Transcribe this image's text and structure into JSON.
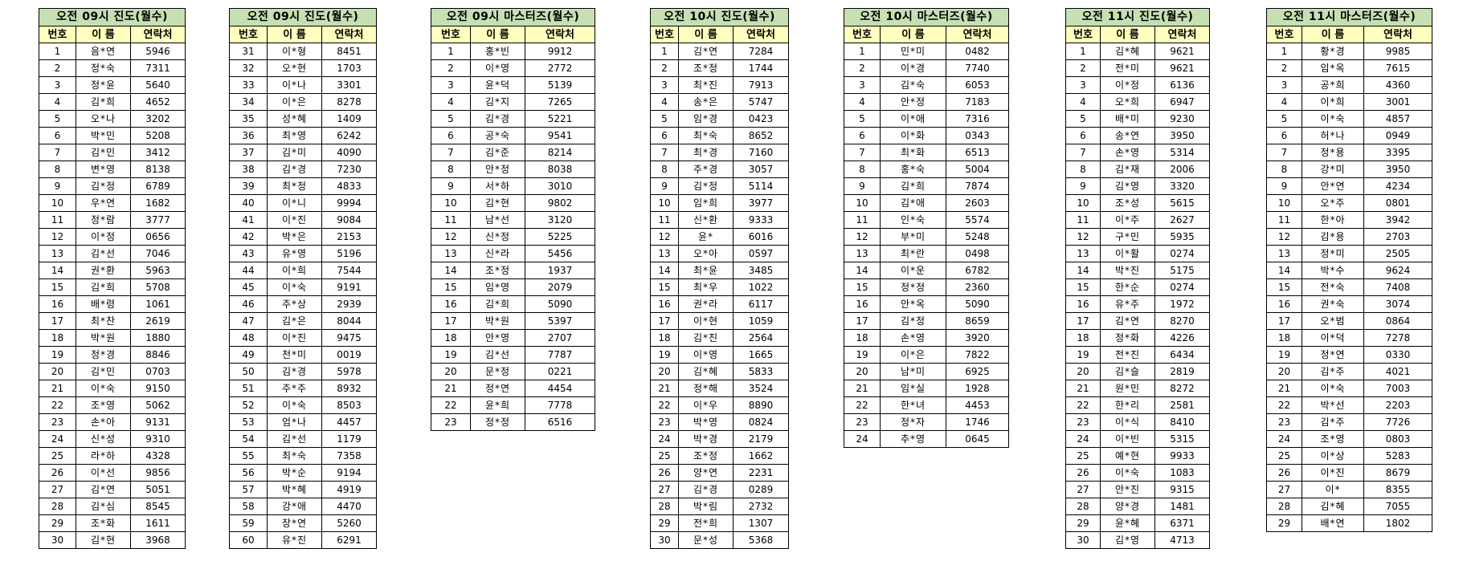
{
  "colors": {
    "title_bg": "#c6e0b4",
    "header_bg": "#ffffc0",
    "border": "#000000"
  },
  "column_headers": [
    "번호",
    "이 름",
    "연락처"
  ],
  "tables": [
    {
      "title": "오전 09시 진도(월수)",
      "rows": [
        [
          "1",
          "음*연",
          "5946"
        ],
        [
          "2",
          "정*숙",
          "7311"
        ],
        [
          "3",
          "정*윤",
          "5640"
        ],
        [
          "4",
          "김*희",
          "4652"
        ],
        [
          "5",
          "오*나",
          "3202"
        ],
        [
          "6",
          "박*민",
          "5208"
        ],
        [
          "7",
          "김*민",
          "3412"
        ],
        [
          "8",
          "변*영",
          "8138"
        ],
        [
          "9",
          "김*정",
          "6789"
        ],
        [
          "10",
          "우*연",
          "1682"
        ],
        [
          "11",
          "정*람",
          "3777"
        ],
        [
          "12",
          "이*정",
          "0656"
        ],
        [
          "13",
          "김*선",
          "7046"
        ],
        [
          "14",
          "권*환",
          "5963"
        ],
        [
          "15",
          "김*희",
          "5708"
        ],
        [
          "16",
          "배*령",
          "1061"
        ],
        [
          "17",
          "최*찬",
          "2619"
        ],
        [
          "18",
          "박*원",
          "1880"
        ],
        [
          "19",
          "정*경",
          "8846"
        ],
        [
          "20",
          "김*민",
          "0703"
        ],
        [
          "21",
          "이*숙",
          "9150"
        ],
        [
          "22",
          "조*영",
          "5062"
        ],
        [
          "23",
          "손*아",
          "9131"
        ],
        [
          "24",
          "신*성",
          "9310"
        ],
        [
          "25",
          "라*하",
          "4328"
        ],
        [
          "26",
          "이*선",
          "9856"
        ],
        [
          "27",
          "김*연",
          "5051"
        ],
        [
          "28",
          "김*심",
          "8545"
        ],
        [
          "29",
          "조*화",
          "1611"
        ],
        [
          "30",
          "김*현",
          "3968"
        ]
      ]
    },
    {
      "title": "오전 09시 진도(월수)",
      "rows": [
        [
          "31",
          "이*형",
          "8451"
        ],
        [
          "32",
          "오*현",
          "1703"
        ],
        [
          "33",
          "이*나",
          "3301"
        ],
        [
          "34",
          "이*은",
          "8278"
        ],
        [
          "35",
          "성*혜",
          "1409"
        ],
        [
          "36",
          "최*영",
          "6242"
        ],
        [
          "37",
          "김*미",
          "4090"
        ],
        [
          "38",
          "김*경",
          "7230"
        ],
        [
          "39",
          "최*정",
          "4833"
        ],
        [
          "40",
          "이*니",
          "9994"
        ],
        [
          "41",
          "이*진",
          "9084"
        ],
        [
          "42",
          "박*은",
          "2153"
        ],
        [
          "43",
          "유*영",
          "5196"
        ],
        [
          "44",
          "이*희",
          "7544"
        ],
        [
          "45",
          "이*숙",
          "9191"
        ],
        [
          "46",
          "주*상",
          "2939"
        ],
        [
          "47",
          "김*은",
          "8044"
        ],
        [
          "48",
          "이*진",
          "9475"
        ],
        [
          "49",
          "천*미",
          "0019"
        ],
        [
          "50",
          "김*경",
          "5978"
        ],
        [
          "51",
          "주*주",
          "8932"
        ],
        [
          "52",
          "이*숙",
          "8503"
        ],
        [
          "53",
          "엄*나",
          "4457"
        ],
        [
          "54",
          "김*선",
          "1179"
        ],
        [
          "55",
          "최*숙",
          "7358"
        ],
        [
          "56",
          "박*순",
          "9194"
        ],
        [
          "57",
          "박*혜",
          "4919"
        ],
        [
          "58",
          "강*애",
          "4470"
        ],
        [
          "59",
          "장*연",
          "5260"
        ],
        [
          "60",
          "유*진",
          "6291"
        ]
      ]
    },
    {
      "title": "오전 09시 마스터즈(월수)",
      "rows": [
        [
          "1",
          "홍*빈",
          "9912"
        ],
        [
          "2",
          "이*영",
          "2772"
        ],
        [
          "3",
          "윤*덕",
          "5139"
        ],
        [
          "4",
          "김*지",
          "7265"
        ],
        [
          "5",
          "김*경",
          "5221"
        ],
        [
          "6",
          "공*숙",
          "9541"
        ],
        [
          "7",
          "김*준",
          "8214"
        ],
        [
          "8",
          "안*정",
          "8038"
        ],
        [
          "9",
          "서*하",
          "3010"
        ],
        [
          "10",
          "김*현",
          "9802"
        ],
        [
          "11",
          "남*선",
          "3120"
        ],
        [
          "12",
          "신*정",
          "5225"
        ],
        [
          "13",
          "신*라",
          "5456"
        ],
        [
          "14",
          "조*정",
          "1937"
        ],
        [
          "15",
          "임*영",
          "2079"
        ],
        [
          "16",
          "김*희",
          "5090"
        ],
        [
          "17",
          "박*원",
          "5397"
        ],
        [
          "18",
          "안*영",
          "2707"
        ],
        [
          "19",
          "김*선",
          "7787"
        ],
        [
          "20",
          "문*정",
          "0221"
        ],
        [
          "21",
          "정*연",
          "4454"
        ],
        [
          "22",
          "윤*희",
          "7778"
        ],
        [
          "23",
          "정*정",
          "6516"
        ]
      ]
    },
    {
      "title": "오전 10시 진도(월수)",
      "rows": [
        [
          "1",
          "김*연",
          "7284"
        ],
        [
          "2",
          "조*정",
          "1744"
        ],
        [
          "3",
          "최*진",
          "7913"
        ],
        [
          "4",
          "송*은",
          "5747"
        ],
        [
          "5",
          "임*경",
          "0423"
        ],
        [
          "6",
          "최*숙",
          "8652"
        ],
        [
          "7",
          "최*경",
          "7160"
        ],
        [
          "8",
          "주*경",
          "3057"
        ],
        [
          "9",
          "김*정",
          "5114"
        ],
        [
          "10",
          "임*희",
          "3977"
        ],
        [
          "11",
          "신*환",
          "9333"
        ],
        [
          "12",
          "윤*",
          "6016"
        ],
        [
          "13",
          "오*아",
          "0597"
        ],
        [
          "14",
          "최*윤",
          "3485"
        ],
        [
          "15",
          "최*우",
          "1022"
        ],
        [
          "16",
          "권*라",
          "6117"
        ],
        [
          "17",
          "이*현",
          "1059"
        ],
        [
          "18",
          "김*진",
          "2564"
        ],
        [
          "19",
          "이*영",
          "1665"
        ],
        [
          "20",
          "김*혜",
          "5833"
        ],
        [
          "21",
          "정*해",
          "3524"
        ],
        [
          "22",
          "이*우",
          "8890"
        ],
        [
          "23",
          "박*영",
          "0824"
        ],
        [
          "24",
          "박*경",
          "2179"
        ],
        [
          "25",
          "조*정",
          "1662"
        ],
        [
          "26",
          "양*연",
          "2231"
        ],
        [
          "27",
          "김*경",
          "0289"
        ],
        [
          "28",
          "박*림",
          "2732"
        ],
        [
          "29",
          "전*희",
          "1307"
        ],
        [
          "30",
          "문*성",
          "5368"
        ]
      ]
    },
    {
      "title": "오전 10시 마스터즈(월수)",
      "rows": [
        [
          "1",
          "민*미",
          "0482"
        ],
        [
          "2",
          "이*경",
          "7740"
        ],
        [
          "3",
          "김*숙",
          "6053"
        ],
        [
          "4",
          "안*정",
          "7183"
        ],
        [
          "5",
          "이*애",
          "7316"
        ],
        [
          "6",
          "이*화",
          "0343"
        ],
        [
          "7",
          "최*화",
          "6513"
        ],
        [
          "8",
          "홍*숙",
          "5004"
        ],
        [
          "9",
          "김*희",
          "7874"
        ],
        [
          "10",
          "김*애",
          "2603"
        ],
        [
          "11",
          "인*숙",
          "5574"
        ],
        [
          "12",
          "부*미",
          "5248"
        ],
        [
          "13",
          "최*란",
          "0498"
        ],
        [
          "14",
          "이*운",
          "6782"
        ],
        [
          "15",
          "정*정",
          "2360"
        ],
        [
          "16",
          "안*옥",
          "5090"
        ],
        [
          "17",
          "김*정",
          "8659"
        ],
        [
          "18",
          "손*영",
          "3920"
        ],
        [
          "19",
          "이*은",
          "7822"
        ],
        [
          "20",
          "남*미",
          "6925"
        ],
        [
          "21",
          "임*실",
          "1928"
        ],
        [
          "22",
          "한*녀",
          "4453"
        ],
        [
          "23",
          "정*자",
          "1746"
        ],
        [
          "24",
          "추*영",
          "0645"
        ]
      ]
    },
    {
      "title": "오전 11시 진도(월수)",
      "rows": [
        [
          "1",
          "김*혜",
          "9621"
        ],
        [
          "2",
          "전*미",
          "9621"
        ],
        [
          "3",
          "이*정",
          "6136"
        ],
        [
          "4",
          "오*희",
          "6947"
        ],
        [
          "5",
          "배*미",
          "9230"
        ],
        [
          "6",
          "송*연",
          "3950"
        ],
        [
          "7",
          "손*영",
          "5314"
        ],
        [
          "8",
          "김*재",
          "2006"
        ],
        [
          "9",
          "김*영",
          "3320"
        ],
        [
          "10",
          "조*성",
          "5615"
        ],
        [
          "11",
          "이*주",
          "2627"
        ],
        [
          "12",
          "구*민",
          "5935"
        ],
        [
          "13",
          "이*활",
          "0274"
        ],
        [
          "14",
          "박*진",
          "5175"
        ],
        [
          "15",
          "한*순",
          "0274"
        ],
        [
          "16",
          "유*주",
          "1972"
        ],
        [
          "17",
          "김*연",
          "8270"
        ],
        [
          "18",
          "정*화",
          "4226"
        ],
        [
          "19",
          "전*진",
          "6434"
        ],
        [
          "20",
          "김*슬",
          "2819"
        ],
        [
          "21",
          "원*민",
          "8272"
        ],
        [
          "22",
          "한*리",
          "2581"
        ],
        [
          "23",
          "이*식",
          "8410"
        ],
        [
          "24",
          "이*빈",
          "5315"
        ],
        [
          "25",
          "예*현",
          "9933"
        ],
        [
          "26",
          "이*숙",
          "1083"
        ],
        [
          "27",
          "안*진",
          "9315"
        ],
        [
          "28",
          "양*경",
          "1481"
        ],
        [
          "29",
          "윤*혜",
          "6371"
        ],
        [
          "30",
          "김*영",
          "4713"
        ]
      ]
    },
    {
      "title": "오전 11시 마스터즈(월수)",
      "rows": [
        [
          "1",
          "황*경",
          "9985"
        ],
        [
          "2",
          "임*옥",
          "7615"
        ],
        [
          "3",
          "공*희",
          "4360"
        ],
        [
          "4",
          "이*희",
          "3001"
        ],
        [
          "5",
          "이*숙",
          "4857"
        ],
        [
          "6",
          "허*나",
          "0949"
        ],
        [
          "7",
          "정*용",
          "3395"
        ],
        [
          "8",
          "강*미",
          "3950"
        ],
        [
          "9",
          "안*연",
          "4234"
        ],
        [
          "10",
          "오*주",
          "0801"
        ],
        [
          "11",
          "한*아",
          "3942"
        ],
        [
          "12",
          "김*용",
          "2703"
        ],
        [
          "13",
          "정*미",
          "2505"
        ],
        [
          "14",
          "박*수",
          "9624"
        ],
        [
          "15",
          "전*숙",
          "7408"
        ],
        [
          "16",
          "권*숙",
          "3074"
        ],
        [
          "17",
          "오*범",
          "0864"
        ],
        [
          "18",
          "이*덕",
          "7278"
        ],
        [
          "19",
          "정*연",
          "0330"
        ],
        [
          "20",
          "김*주",
          "4021"
        ],
        [
          "21",
          "이*숙",
          "7003"
        ],
        [
          "22",
          "박*선",
          "2203"
        ],
        [
          "23",
          "김*주",
          "7726"
        ],
        [
          "24",
          "조*영",
          "0803"
        ],
        [
          "25",
          "이*상",
          "5283"
        ],
        [
          "26",
          "이*진",
          "8679"
        ],
        [
          "27",
          "이*",
          "8355"
        ],
        [
          "28",
          "김*혜",
          "7055"
        ],
        [
          "29",
          "배*연",
          "1802"
        ]
      ]
    }
  ]
}
